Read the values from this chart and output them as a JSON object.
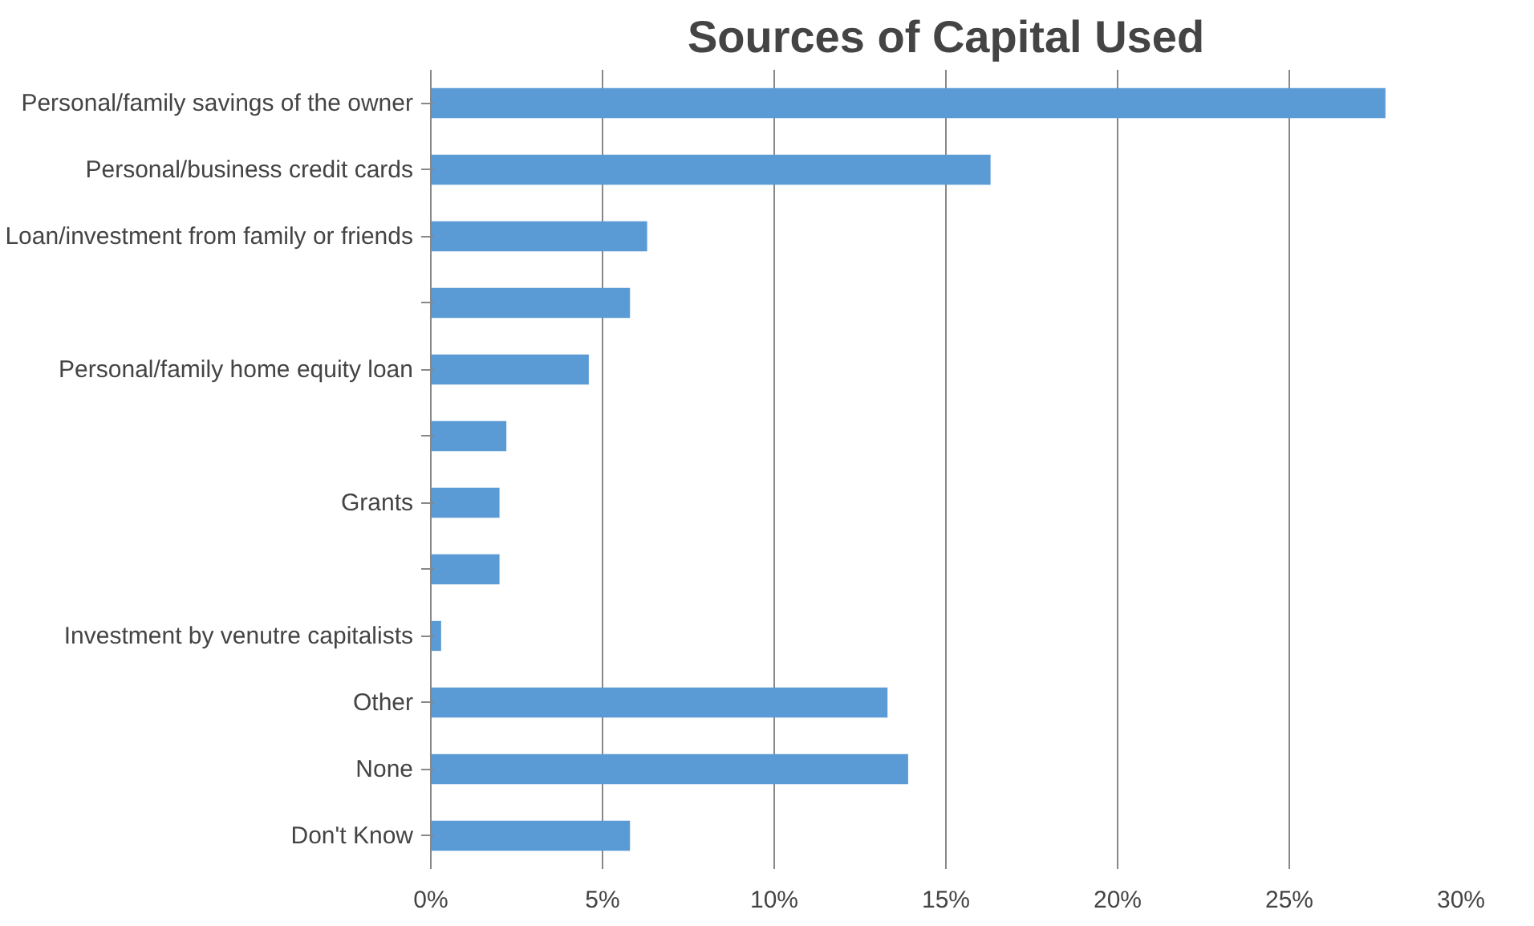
{
  "chart_data": {
    "type": "bar",
    "title": "Sources of Capital Used",
    "orientation": "horizontal",
    "categories": [
      "Personal/family savings of the owner",
      "Personal/business credit cards",
      "Loan/investment from family or friends",
      null,
      "Personal/family home equity loan",
      null,
      "Grants",
      null,
      "Investment by venutre capitalists",
      "Other",
      "None",
      "Don't Know"
    ],
    "values": [
      27.8,
      16.3,
      6.3,
      5.8,
      4.6,
      2.2,
      2.0,
      2.0,
      0.3,
      13.3,
      13.9,
      5.8
    ],
    "color": "#5b9bd5",
    "xlim": [
      0,
      30
    ],
    "xticks": [
      {
        "value": 0,
        "label": "0%"
      },
      {
        "value": 5,
        "label": "5%"
      },
      {
        "value": 10,
        "label": "10%"
      },
      {
        "value": 15,
        "label": "15%"
      },
      {
        "value": 20,
        "label": "20%"
      },
      {
        "value": 25,
        "label": "25%"
      },
      {
        "value": 30,
        "label": "30%"
      }
    ],
    "grid": "x"
  }
}
